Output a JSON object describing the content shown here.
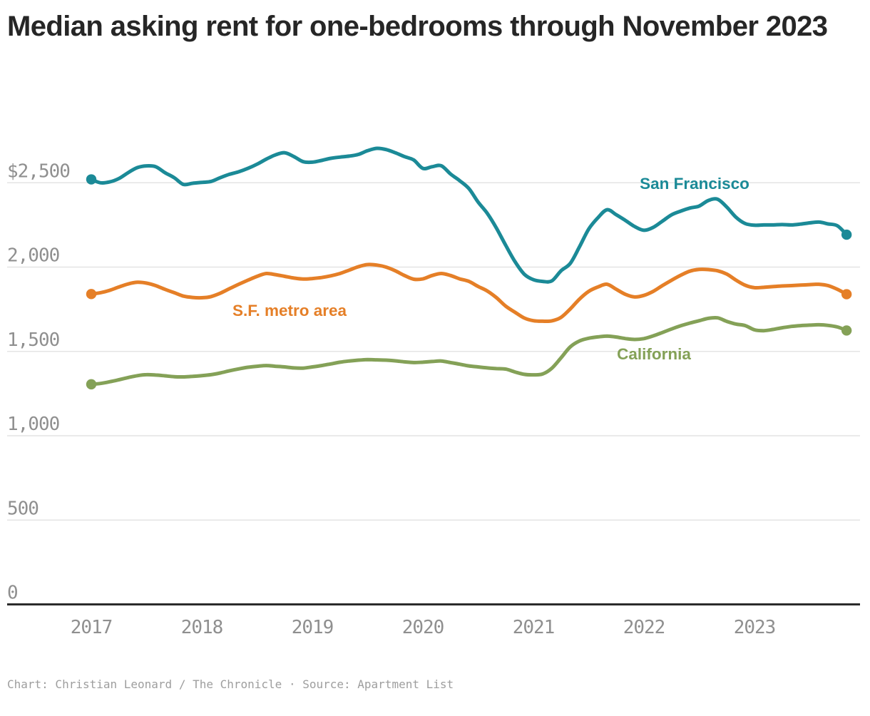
{
  "title": "Median asking rent for one-bedrooms through November 2023",
  "credit": "Chart: Christian Leonard / The Chronicle · Source: Apartment List",
  "chart_data": {
    "type": "line",
    "title": "Median asking rent for one-bedrooms through November 2023",
    "x_start": "2017-01",
    "x_end": "2023-11",
    "x_frequency": "monthly",
    "x_tick_labels": [
      "2017",
      "2018",
      "2019",
      "2020",
      "2021",
      "2022",
      "2023"
    ],
    "y_ticks": [
      2500,
      2000,
      1500,
      1000,
      500,
      0
    ],
    "y_tick_labels": [
      "$2,500",
      "2,000",
      "1,500",
      "1,000",
      "500",
      "0"
    ],
    "ylim": [
      0,
      2950
    ],
    "grid": "horizontal-only",
    "legend": "inline-labels",
    "units": "dollars per month",
    "series": [
      {
        "name": "San Francisco",
        "color": "#1B8A97",
        "values": [
          2520,
          2500,
          2505,
          2525,
          2560,
          2590,
          2600,
          2595,
          2560,
          2530,
          2490,
          2497,
          2502,
          2508,
          2530,
          2550,
          2565,
          2585,
          2610,
          2640,
          2665,
          2678,
          2655,
          2625,
          2622,
          2632,
          2645,
          2652,
          2658,
          2668,
          2690,
          2704,
          2697,
          2678,
          2655,
          2635,
          2585,
          2595,
          2601,
          2552,
          2512,
          2465,
          2385,
          2318,
          2230,
          2128,
          2032,
          1958,
          1925,
          1915,
          1918,
          1978,
          2022,
          2120,
          2225,
          2292,
          2340,
          2310,
          2276,
          2240,
          2218,
          2235,
          2272,
          2310,
          2332,
          2350,
          2362,
          2395,
          2402,
          2355,
          2295,
          2258,
          2248,
          2250,
          2250,
          2252,
          2250,
          2255,
          2262,
          2267,
          2256,
          2245,
          2192
        ]
      },
      {
        "name": "S.F. metro area",
        "color": "#E57F27",
        "values": [
          1840,
          1848,
          1862,
          1882,
          1900,
          1910,
          1905,
          1890,
          1868,
          1848,
          1828,
          1820,
          1818,
          1825,
          1845,
          1872,
          1898,
          1922,
          1945,
          1962,
          1955,
          1945,
          1935,
          1929,
          1932,
          1938,
          1948,
          1962,
          1982,
          2002,
          2015,
          2012,
          2000,
          1978,
          1950,
          1928,
          1930,
          1950,
          1962,
          1950,
          1930,
          1915,
          1885,
          1858,
          1818,
          1768,
          1732,
          1698,
          1682,
          1679,
          1681,
          1702,
          1752,
          1810,
          1856,
          1882,
          1898,
          1868,
          1838,
          1823,
          1832,
          1856,
          1890,
          1922,
          1952,
          1976,
          1986,
          1985,
          1978,
          1958,
          1922,
          1892,
          1878,
          1880,
          1884,
          1888,
          1890,
          1893,
          1896,
          1898,
          1890,
          1868,
          1839
        ]
      },
      {
        "name": "California",
        "color": "#84A157",
        "values": [
          1305,
          1310,
          1320,
          1332,
          1345,
          1356,
          1362,
          1360,
          1355,
          1350,
          1349,
          1352,
          1356,
          1362,
          1372,
          1385,
          1396,
          1406,
          1412,
          1416,
          1412,
          1408,
          1402,
          1401,
          1408,
          1416,
          1426,
          1436,
          1443,
          1448,
          1451,
          1450,
          1448,
          1444,
          1438,
          1434,
          1436,
          1440,
          1443,
          1434,
          1424,
          1414,
          1408,
          1402,
          1398,
          1395,
          1378,
          1364,
          1361,
          1366,
          1400,
          1462,
          1527,
          1562,
          1578,
          1586,
          1591,
          1585,
          1576,
          1571,
          1576,
          1592,
          1612,
          1633,
          1652,
          1668,
          1682,
          1696,
          1699,
          1678,
          1662,
          1653,
          1628,
          1623,
          1630,
          1640,
          1648,
          1653,
          1656,
          1658,
          1654,
          1645,
          1624
        ]
      }
    ]
  }
}
